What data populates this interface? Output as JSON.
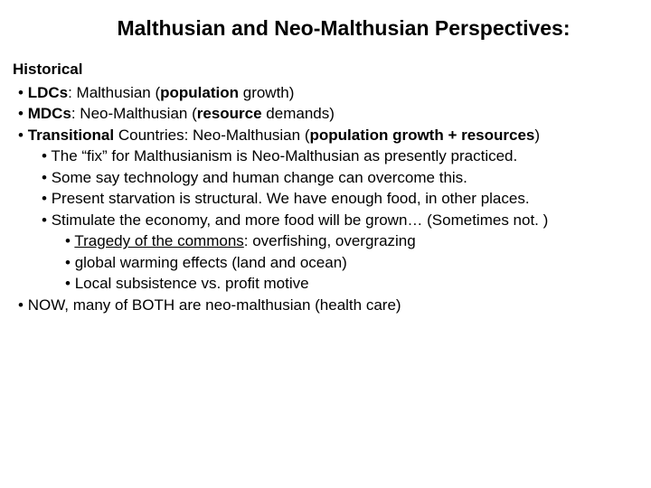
{
  "colors": {
    "background": "#ffffff",
    "text": "#000000"
  },
  "typography": {
    "family": "Arial",
    "title_size_pt": 23,
    "body_size_pt": 17,
    "title_weight": "bold",
    "line_height": 1.38
  },
  "title": "Malthusian and Neo-Malthusian Perspectives:",
  "section_heading": "Historical",
  "bullets": {
    "b1_pre": "LDCs",
    "b1_mid": ": Malthusian (",
    "b1_bold": "population",
    "b1_post": " growth)",
    "b2_pre": "MDCs",
    "b2_mid": ": Neo-Malthusian (",
    "b2_bold": "resource",
    "b2_post": " demands)",
    "b3_pre": "Transitional",
    "b3_mid": " Countries: Neo-Malthusian (",
    "b3_bold": "population growth + resources",
    "b3_post": ")",
    "sub1": "The “fix” for Malthusianism is Neo-Malthusian as presently practiced.",
    "sub2": "Some say technology and human change can overcome this.",
    "sub3": "Present starvation is structural. We have enough food, in other places.",
    "sub4": "Stimulate the economy, and more food will be grown… (Sometimes not. )",
    "subsub1_u": "Tragedy of the commons",
    "subsub1_rest": ": overfishing, overgrazing",
    "subsub2": "global warming effects (land and ocean)",
    "subsub3": "Local subsistence vs. profit motive",
    "b4": "NOW, many of BOTH are neo-malthusian (health care)"
  }
}
